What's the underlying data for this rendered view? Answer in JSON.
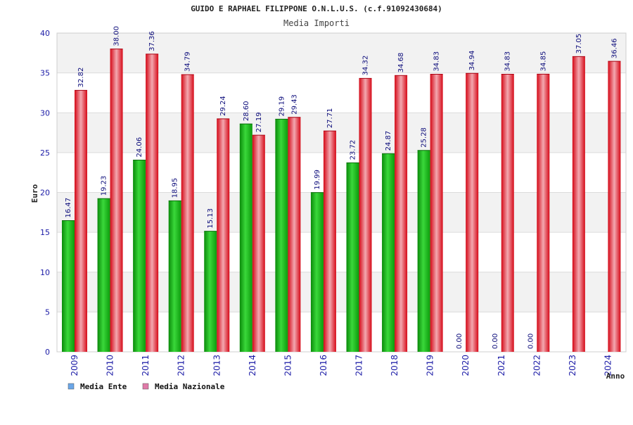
{
  "chart_data": {
    "type": "bar",
    "title": "GUIDO E RAPHAEL FILIPPONE O.N.L.U.S. (c.f.91092430684)",
    "subtitle": "Media Importi",
    "xlabel": "Anno",
    "ylabel": "Euro",
    "ylim": [
      0,
      40
    ],
    "yticks": [
      0,
      5,
      10,
      15,
      20,
      25,
      30,
      35,
      40
    ],
    "grid": true,
    "legend_position": "bottom-left",
    "categories": [
      "2009",
      "2010",
      "2011",
      "2012",
      "2013",
      "2014",
      "2015",
      "2016",
      "2017",
      "2018",
      "2019",
      "2020",
      "2021",
      "2022",
      "2023",
      "2024"
    ],
    "series": [
      {
        "name": "Media Ente",
        "values": [
          16.47,
          19.23,
          24.06,
          18.95,
          15.13,
          28.6,
          29.19,
          19.99,
          23.72,
          24.87,
          25.28,
          0,
          0,
          0,
          null,
          null
        ],
        "labels": [
          "16.47",
          "19.23",
          "24.06",
          "18.95",
          "15.13",
          "28.60",
          "29.19",
          "19.99",
          "23.72",
          "24.87",
          "25.28",
          "0.00",
          "0.00",
          "0.00",
          "",
          ""
        ],
        "color": "#13b313",
        "legend_color": "#6aa6e8"
      },
      {
        "name": "Media Nazionale",
        "values": [
          32.82,
          38.0,
          37.36,
          34.79,
          29.24,
          27.19,
          29.43,
          27.71,
          34.32,
          34.68,
          34.83,
          34.94,
          34.83,
          34.85,
          37.05,
          36.46
        ],
        "labels": [
          "32.82",
          "38.00",
          "37.36",
          "34.79",
          "29.24",
          "27.19",
          "29.43",
          "27.71",
          "34.32",
          "34.68",
          "34.83",
          "34.94",
          "34.83",
          "34.85",
          "37.05",
          "36.46"
        ],
        "color": "#e8101e",
        "legend_color": "#e07aa8"
      }
    ]
  }
}
